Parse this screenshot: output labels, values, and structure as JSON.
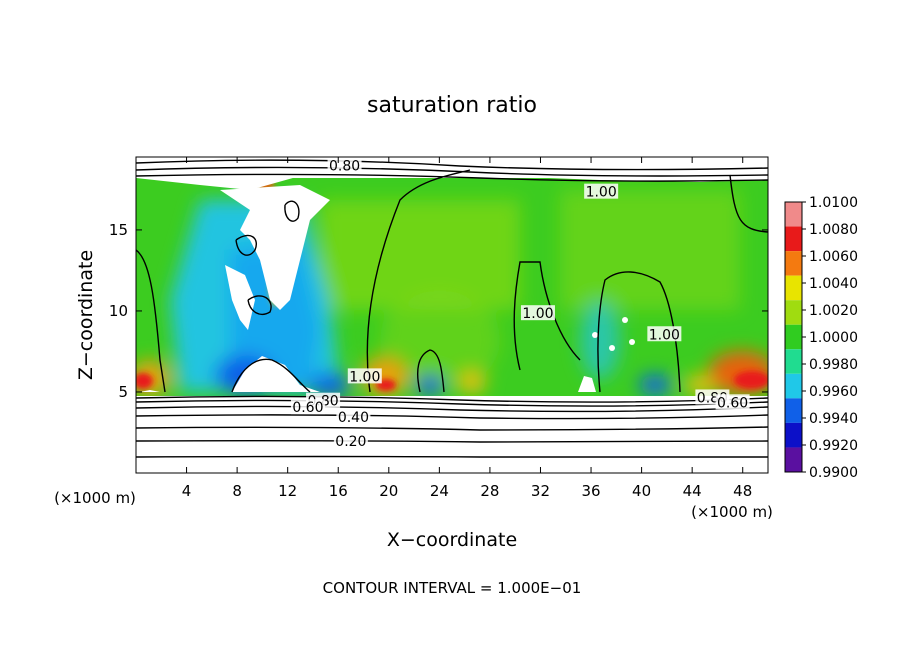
{
  "chart_data": {
    "type": "heatmap",
    "title": "saturation ratio",
    "xlabel": "X−coordinate",
    "ylabel": "Z−coordinate",
    "x_unit_left": "(×1000 m)",
    "x_unit_right": "(×1000 m)",
    "xlim": [
      0,
      50
    ],
    "ylim": [
      0,
      19.5
    ],
    "x_ticks": [
      "4",
      "8",
      "12",
      "16",
      "20",
      "24",
      "28",
      "32",
      "36",
      "40",
      "44",
      "48"
    ],
    "x_tick_values": [
      4,
      8,
      12,
      16,
      20,
      24,
      28,
      32,
      36,
      40,
      44,
      48
    ],
    "y_ticks": [
      "5",
      "10",
      "15"
    ],
    "y_tick_values": [
      5,
      10,
      15
    ],
    "colorbar": {
      "labels": [
        "1.0100",
        "1.0080",
        "1.0060",
        "1.0040",
        "1.0020",
        "1.0000",
        "0.9980",
        "0.9960",
        "0.9940",
        "0.9920",
        "0.9900"
      ],
      "values": [
        1.01,
        1.008,
        1.006,
        1.004,
        1.002,
        1.0,
        0.998,
        0.996,
        0.994,
        0.992,
        0.99
      ],
      "colors": [
        "#f08a8a",
        "#e81a1a",
        "#f47a10",
        "#e8e400",
        "#a0dc10",
        "#30cc20",
        "#20dc90",
        "#20c8e8",
        "#1060e8",
        "#0c10c8",
        "#5a10a0"
      ]
    },
    "contour_labels": [
      {
        "text": "0.80",
        "x": 16.5,
        "y": 18.9
      },
      {
        "text": "1.00",
        "x": 36.8,
        "y": 17.3
      },
      {
        "text": "1.00",
        "x": 31.8,
        "y": 9.8
      },
      {
        "text": "1.00",
        "x": 41.8,
        "y": 8.5
      },
      {
        "text": "1.00",
        "x": 18.1,
        "y": 5.9
      },
      {
        "text": "0.80",
        "x": 14.8,
        "y": 4.4
      },
      {
        "text": "0.60",
        "x": 13.6,
        "y": 4.0
      },
      {
        "text": "0.40",
        "x": 17.2,
        "y": 3.4
      },
      {
        "text": "0.20",
        "x": 17.0,
        "y": 1.9
      },
      {
        "text": "0.80",
        "x": 45.6,
        "y": 4.6
      },
      {
        "text": "0.60",
        "x": 47.2,
        "y": 4.3
      }
    ],
    "contour_interval_text": "CONTOUR INTERVAL = 1.000E−01"
  }
}
